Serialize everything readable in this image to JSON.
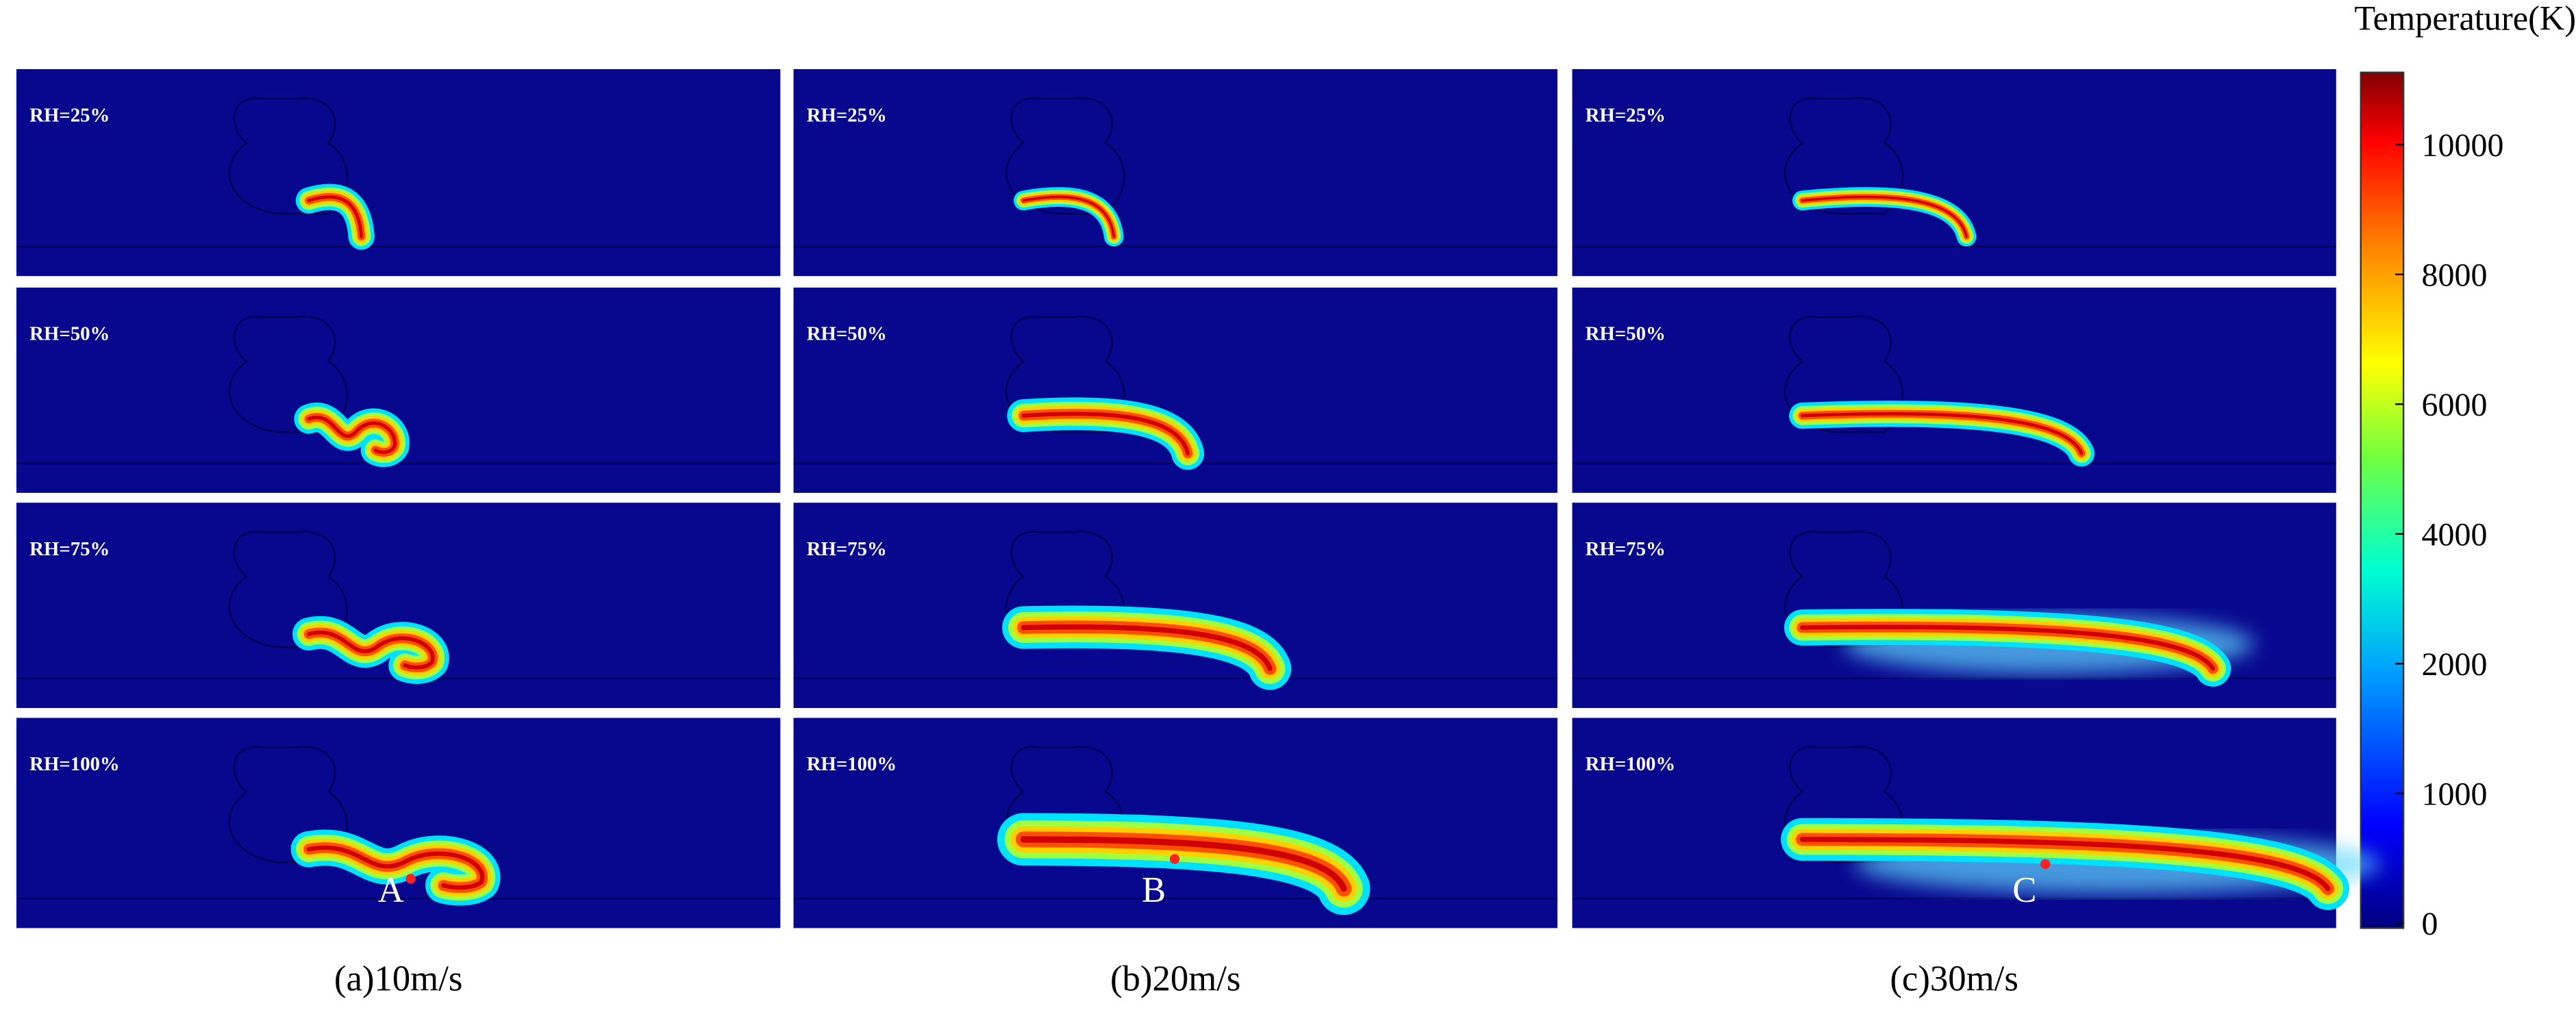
{
  "colorbar": {
    "title": "Temperature(K)",
    "ticks": [
      0,
      1000,
      2000,
      4000,
      6000,
      8000,
      10000
    ]
  },
  "columns": [
    {
      "caption": "(a)10m/s",
      "panels": [
        "RH=25%",
        "RH=50%",
        "RH=75%",
        "RH=100%"
      ]
    },
    {
      "caption": "(b)20m/s",
      "panels": [
        "RH=25%",
        "RH=50%",
        "RH=75%",
        "RH=100%"
      ]
    },
    {
      "caption": "(c)30m/s",
      "panels": [
        "RH=25%",
        "RH=50%",
        "RH=75%",
        "RH=100%"
      ]
    }
  ],
  "markers": [
    "A",
    "B",
    "C"
  ]
}
